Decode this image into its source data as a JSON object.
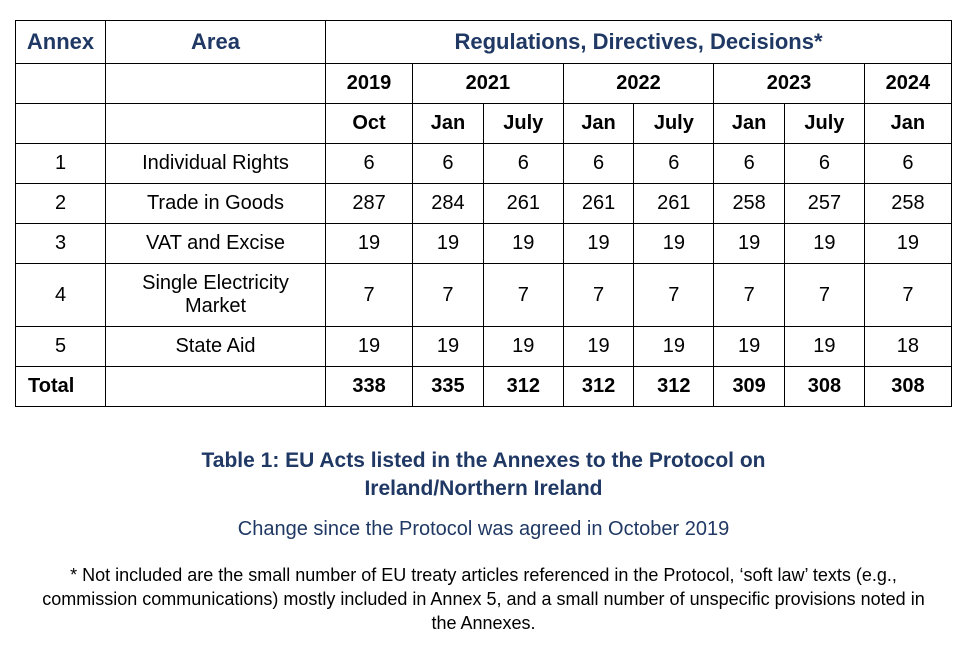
{
  "table": {
    "type": "table",
    "border_color": "#000000",
    "background_color": "#ffffff",
    "header_primary_color": "#1f3864",
    "body_text_color": "#000000",
    "header_fontsize_pt": 16,
    "body_fontsize_pt": 15,
    "headers": {
      "annex": "Annex",
      "area": "Area",
      "regs": "Regulations, Directives, Decisions*"
    },
    "year_groups": [
      {
        "year": "2019",
        "months": [
          "Oct"
        ]
      },
      {
        "year": "2021",
        "months": [
          "Jan",
          "July"
        ]
      },
      {
        "year": "2022",
        "months": [
          "Jan",
          "July"
        ]
      },
      {
        "year": "2023",
        "months": [
          "Jan",
          "July"
        ]
      },
      {
        "year": "2024",
        "months": [
          "Jan"
        ]
      }
    ],
    "columns_alignment": "center",
    "rows": [
      {
        "annex": "1",
        "area": "Individual Rights",
        "values": [
          "6",
          "6",
          "6",
          "6",
          "6",
          "6",
          "6",
          "6"
        ]
      },
      {
        "annex": "2",
        "area": "Trade in Goods",
        "values": [
          "287",
          "284",
          "261",
          "261",
          "261",
          "258",
          "257",
          "258"
        ]
      },
      {
        "annex": "3",
        "area": "VAT and Excise",
        "values": [
          "19",
          "19",
          "19",
          "19",
          "19",
          "19",
          "19",
          "19"
        ]
      },
      {
        "annex": "4",
        "area": "Single Electricity Market",
        "values": [
          "7",
          "7",
          "7",
          "7",
          "7",
          "7",
          "7",
          "7"
        ]
      },
      {
        "annex": "5",
        "area": "State Aid",
        "values": [
          "19",
          "19",
          "19",
          "19",
          "19",
          "19",
          "19",
          "18"
        ]
      }
    ],
    "total": {
      "label": "Total",
      "values": [
        "338",
        "335",
        "312",
        "312",
        "312",
        "309",
        "308",
        "308"
      ]
    }
  },
  "caption": {
    "title": "Table 1: EU Acts listed in the Annexes to the Protocol on Ireland/Northern Ireland",
    "title_color": "#1f3864",
    "title_fontsize_pt": 16,
    "subtitle": "Change since the Protocol was agreed in October 2019",
    "subtitle_color": "#1f3864",
    "subtitle_fontsize_pt": 15
  },
  "footnote": {
    "text": "* Not included are the small number of EU treaty articles referenced in the Protocol, ‘soft law’ texts (e.g., commission communications) mostly included in Annex 5, and a small number of unspecific provisions noted in the Annexes.",
    "color": "#000000",
    "fontsize_pt": 13
  }
}
